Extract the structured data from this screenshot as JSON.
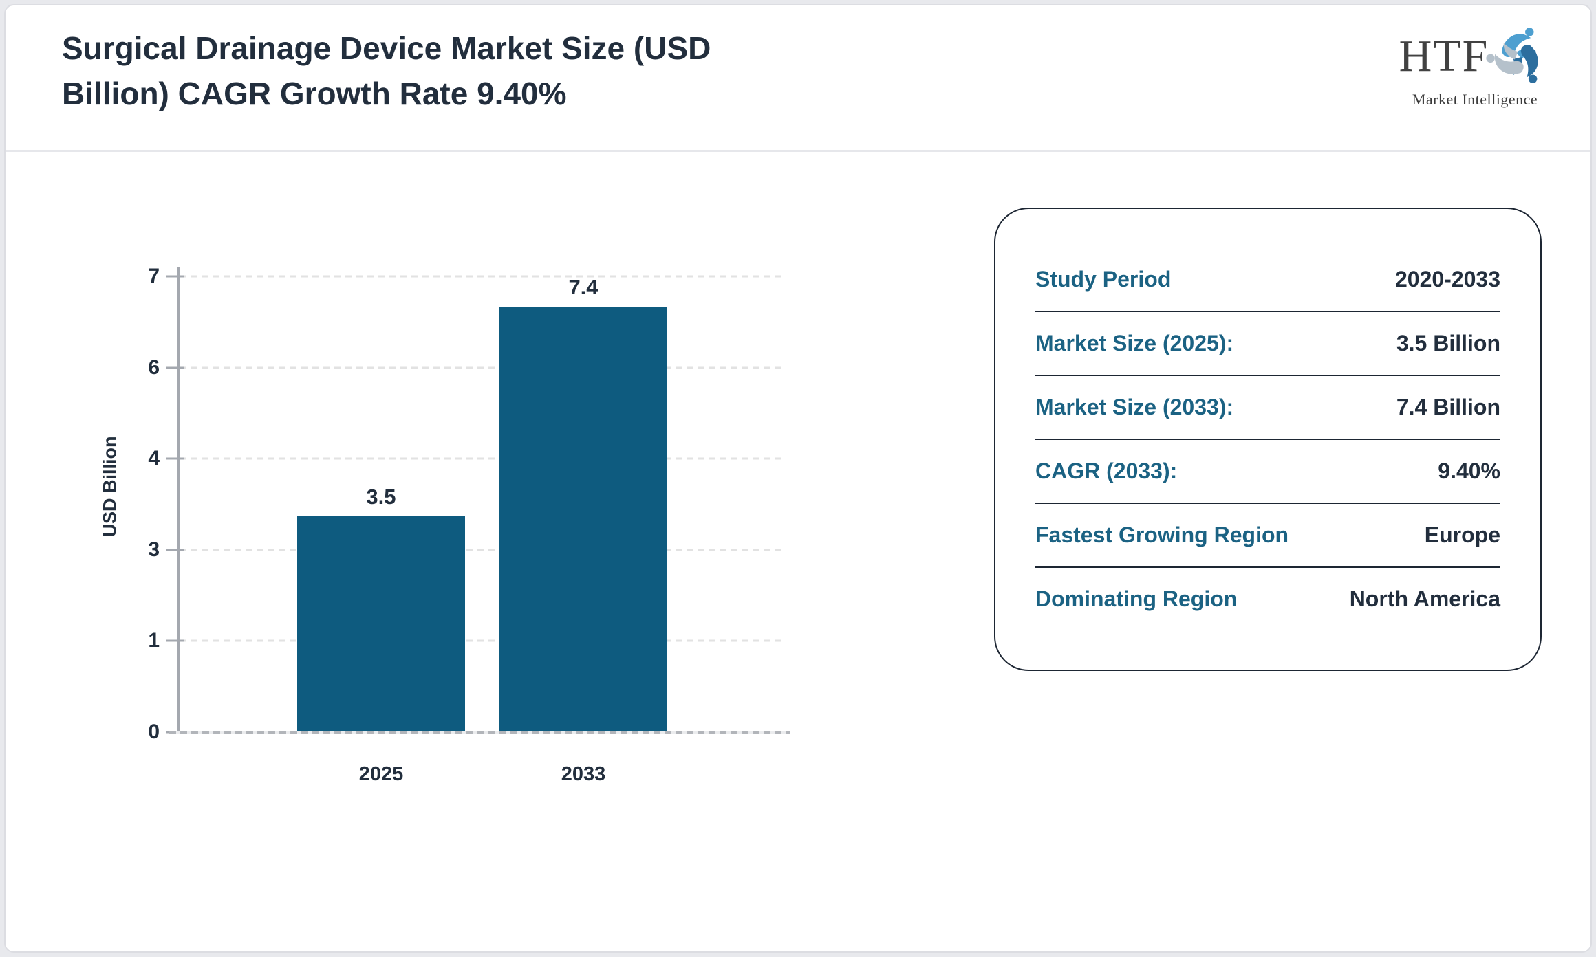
{
  "header": {
    "title": "Surgical Drainage Device Market Size (USD Billion) CAGR Growth Rate 9.40%",
    "title_line1": "Surgical Drainage Device Market Size (USD",
    "title_line2": "Billion) CAGR Growth Rate 9.40%"
  },
  "logo": {
    "brand": "HTF",
    "tagline": "Market Intelligence",
    "icon": "htf-swirl-icon",
    "colors": {
      "light_blue": "#4d9fd0",
      "steel_blue": "#2c6e9e",
      "gray_blue": "#b5c1cb",
      "text": "#414141"
    }
  },
  "chart_data": {
    "type": "bar",
    "title": "Surgical Drainage Device Market Size (USD Billion) CAGR Growth Rate 9.40%",
    "categories": [
      "2025",
      "2033"
    ],
    "values": [
      3.5,
      7.4
    ],
    "bar_labels": [
      "3.5",
      "7.4"
    ],
    "xlabel": "",
    "ylabel": "USD Billion",
    "ylim": [
      0,
      7.4
    ],
    "ytick_labels": [
      "0",
      "1",
      "3",
      "4",
      "6",
      "7"
    ],
    "yticks_evenly_spaced": true,
    "grid": "horizontal-dashed",
    "legend": null,
    "bar_color": "#0e5b7f",
    "label_color": "#222e3d"
  },
  "panel": {
    "rows": [
      {
        "label": "Study Period",
        "value": "2020-2033"
      },
      {
        "label": "Market Size (2025):",
        "value": "3.5 Billion"
      },
      {
        "label": "Market Size (2033):",
        "value": "7.4 Billion"
      },
      {
        "label": "CAGR (2033):",
        "value": "9.40%"
      },
      {
        "label": "Fastest Growing Region",
        "value": "Europe"
      },
      {
        "label": "Dominating Region",
        "value": "North America"
      }
    ],
    "label_color": "#1b6283",
    "value_color": "#222e3d",
    "border_color": "#1d2633"
  }
}
